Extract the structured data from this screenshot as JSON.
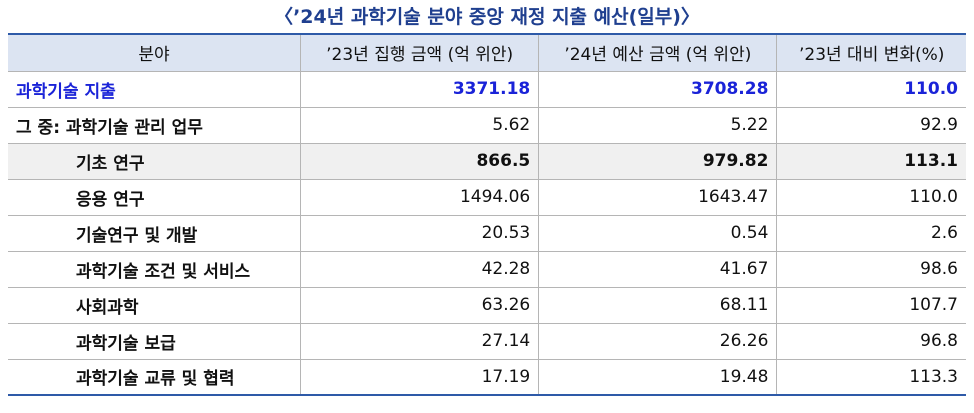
{
  "title": "〈’24년 과학기술 분야 중앙 재정 지출 예산(일부)〉",
  "table": {
    "header": [
      "분야",
      "’23년 집행 금액 (억 위안)",
      "’24년 예산 금액 (억 위안)",
      "’23년 대비 변화(%)"
    ],
    "rows": [
      [
        "과학기술 지출",
        "3371.18",
        "3708.28",
        "110.0"
      ],
      [
        "그 중: 과학기술 관리 업무",
        "5.62",
        "5.22",
        "92.9"
      ],
      [
        "기초 연구",
        "866.5",
        "979.82",
        "113.1"
      ],
      [
        "응용 연구",
        "1494.06",
        "1643.47",
        "110.0"
      ],
      [
        "기술연구 및 개발",
        "20.53",
        "0.54",
        "2.6"
      ],
      [
        "과학기술 조건 및 서비스",
        "42.28",
        "41.67",
        "98.6"
      ],
      [
        "사회과학",
        "63.26",
        "68.11",
        "107.7"
      ],
      [
        "과학기술 보급",
        "27.14",
        "26.26",
        "96.8"
      ],
      [
        "과학기술 교류 및 협력",
        "17.19",
        "19.48",
        "113.3"
      ]
    ]
  }
}
